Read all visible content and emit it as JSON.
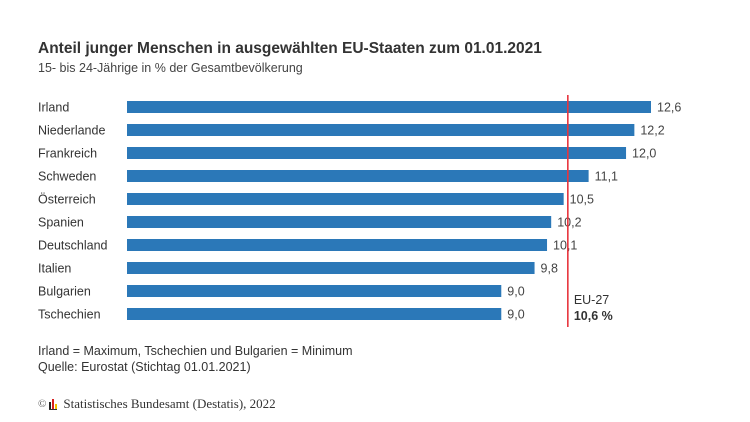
{
  "header": {
    "title": "Anteil junger Menschen in ausgewählten EU-Staaten zum 01.01.2021",
    "subtitle": "15- bis 24-Jährige in % der Gesamtbevölkerung"
  },
  "chart_data": {
    "type": "bar",
    "orientation": "horizontal",
    "title": "Anteil junger Menschen in ausgewählten EU-Staaten zum 01.01.2021",
    "subtitle": "15- bis 24-Jährige in % der Gesamtbevölkerung",
    "xlabel": "",
    "ylabel": "",
    "categories": [
      "Irland",
      "Niederlande",
      "Frankreich",
      "Schweden",
      "Österreich",
      "Spanien",
      "Deutschland",
      "Italien",
      "Bulgarien",
      "Tschechien"
    ],
    "values": [
      12.6,
      12.2,
      12.0,
      11.1,
      10.5,
      10.2,
      10.1,
      9.8,
      9.0,
      9.0
    ],
    "value_labels": [
      "12,6",
      "12,2",
      "12,0",
      "11,1",
      "10,5",
      "10,2",
      "10,1",
      "9,8",
      "9,0",
      "9,0"
    ],
    "xlim": [
      0,
      12.6
    ],
    "grid": false,
    "bar_color": "#2b78b8",
    "reference_line": {
      "label": "EU-27",
      "value": 10.6,
      "value_label": "10,6 %",
      "color": "#e8353d"
    }
  },
  "notes": {
    "line1": "Irland = Maximum, Tschechien und Bulgarien = Minimum",
    "line2": "Quelle: Eurostat (Stichtag 01.01.2021)"
  },
  "footer": {
    "copyright_symbol": "©",
    "text": "Statistisches Bundesamt (Destatis), 2022",
    "logo_colors": [
      "#222222",
      "#d7201f",
      "#f2c200"
    ]
  }
}
